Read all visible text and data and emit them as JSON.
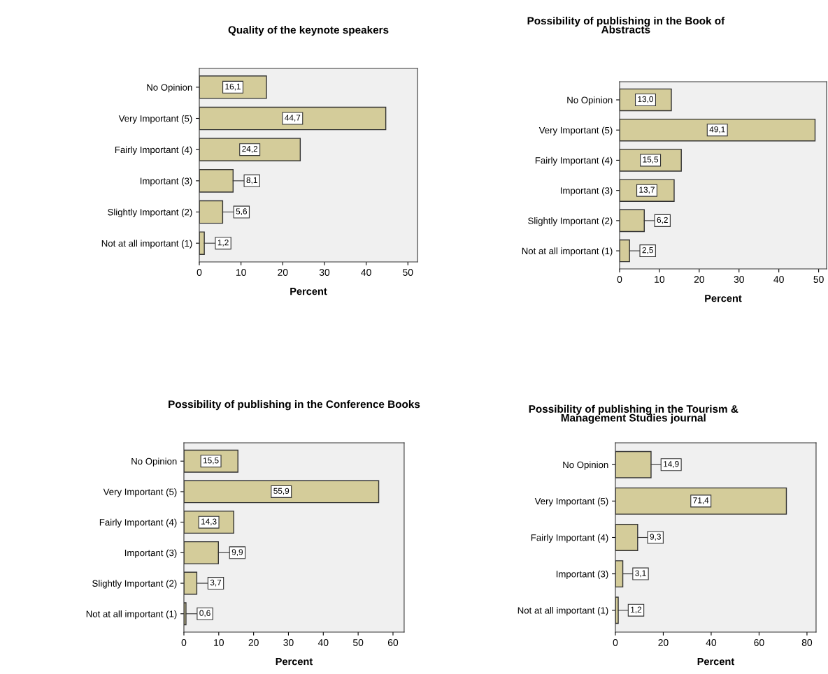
{
  "chart_data": [
    {
      "type": "bar",
      "orientation": "horizontal",
      "title": "Quality of the keynote speakers",
      "xlabel": "Percent",
      "categories": [
        "No Opinion",
        "Very Important (5)",
        "Fairly Important (4)",
        "Important (3)",
        "Slightly Important (2)",
        "Not at all important (1)"
      ],
      "series": [
        {
          "color": "#d4cc9a",
          "values": [
            16.1,
            44.7,
            24.2,
            8.1,
            5.6,
            1.2
          ],
          "value_labels": [
            "16,1",
            "44,7",
            "24,2",
            "8,1",
            "5,6",
            "1,2"
          ]
        }
      ],
      "xlim": [
        0,
        52.3
      ],
      "xticks": [
        0,
        10,
        20,
        30,
        40,
        50
      ],
      "grid": false
    },
    {
      "type": "bar",
      "orientation": "horizontal",
      "title": "Possibility of publishing in the Book of\nAbstracts",
      "xlabel": "Percent",
      "categories": [
        "No Opinion",
        "Very Important (5)",
        "Fairly Important (4)",
        "Important (3)",
        "Slightly Important (2)",
        "Not at all important (1)"
      ],
      "series": [
        {
          "color": "#d4cc9a",
          "values": [
            13.0,
            49.1,
            15.5,
            13.7,
            6.2,
            2.5
          ],
          "value_labels": [
            "13,0",
            "49,1",
            "15,5",
            "13,7",
            "6,2",
            "2,5"
          ]
        }
      ],
      "xlim": [
        0,
        52.0
      ],
      "xticks": [
        0,
        10,
        20,
        30,
        40,
        50
      ],
      "grid": false
    },
    {
      "type": "bar",
      "orientation": "horizontal",
      "title": "Possibility of publishing in the Conference Books",
      "xlabel": "Percent",
      "categories": [
        "No Opinion",
        "Very Important (5)",
        "Fairly Important (4)",
        "Important (3)",
        "Slightly Important (2)",
        "Not at all important (1)"
      ],
      "series": [
        {
          "color": "#d4cc9a",
          "values": [
            15.5,
            55.9,
            14.3,
            9.9,
            3.7,
            0.6
          ],
          "value_labels": [
            "15,5",
            "55,9",
            "14,3",
            "9,9",
            "3,7",
            "0,6"
          ]
        }
      ],
      "xlim": [
        0,
        63.2
      ],
      "xticks": [
        0,
        10,
        20,
        30,
        40,
        50,
        60
      ],
      "grid": false
    },
    {
      "type": "bar",
      "orientation": "horizontal",
      "title": "Possibility of publishing in the Tourism &\nManagement Studies journal",
      "xlabel": "Percent",
      "categories": [
        "No Opinion",
        "Very Important (5)",
        "Fairly Important (4)",
        "Important (3)",
        "Not at all important (1)"
      ],
      "series": [
        {
          "color": "#d4cc9a",
          "values": [
            14.9,
            71.4,
            9.3,
            3.1,
            1.2
          ],
          "value_labels": [
            "14,9",
            "71,4",
            "9,3",
            "3,1",
            "1,2"
          ]
        }
      ],
      "xlim": [
        0,
        83.8
      ],
      "xticks": [
        0,
        20,
        40,
        60,
        80
      ],
      "grid": false
    }
  ]
}
